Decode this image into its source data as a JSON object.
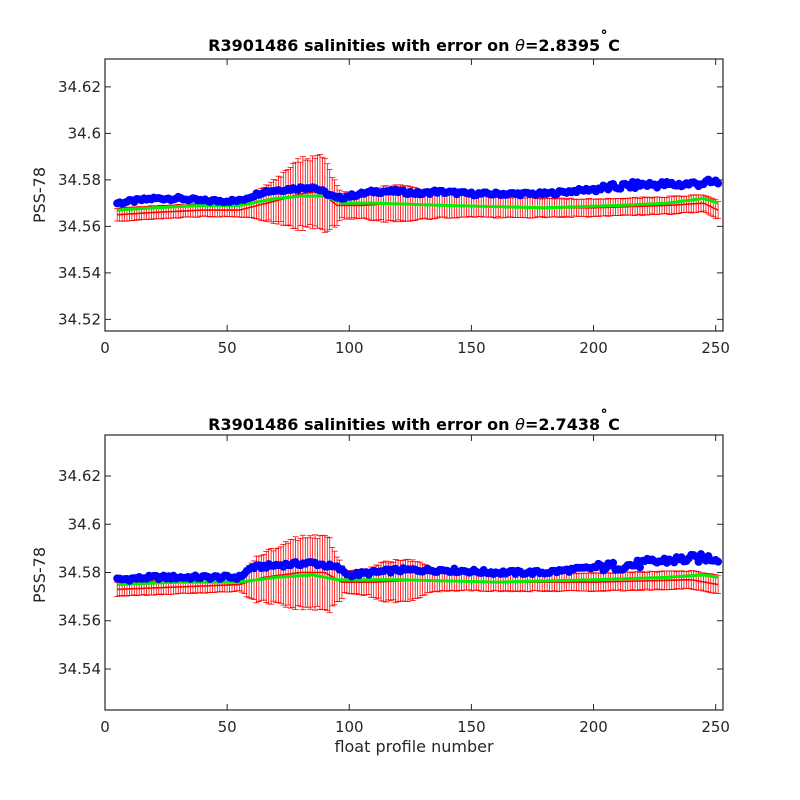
{
  "colors": {
    "float_points": "#0000ff",
    "mapped_salinity": "#ff0000",
    "calibrated_salinity": "#00ee00",
    "axes": "#262626"
  },
  "chart_data": [
    {
      "type": "scatter",
      "title": "R3901486 salinities with error on θ=2.8395˚C",
      "title_prefix": "R3901486 salinities with error on ",
      "title_theta": "θ",
      "title_value": "=2.8395",
      "title_degree": "˚",
      "title_unit": "C",
      "xlabel": "",
      "ylabel": "PSS-78",
      "xlim": [
        0,
        253
      ],
      "ylim": [
        34.515,
        34.632
      ],
      "xticks": [
        0,
        50,
        100,
        150,
        200,
        250
      ],
      "xtick_labels": [
        "0",
        "50",
        "100",
        "150",
        "200",
        "250"
      ],
      "yticks": [
        34.52,
        34.54,
        34.56,
        34.58,
        34.6,
        34.62
      ],
      "ytick_labels": [
        "34.52",
        "34.54",
        "34.56",
        "34.58",
        "34.6",
        "34.62"
      ],
      "grid": false,
      "series": [
        {
          "role": "float",
          "x_range": [
            5,
            251
          ],
          "control_points": [
            [
              5,
              34.57
            ],
            [
              20,
              34.572
            ],
            [
              30,
              34.572
            ],
            [
              40,
              34.571
            ],
            [
              55,
              34.571
            ],
            [
              65,
              34.575
            ],
            [
              75,
              34.576
            ],
            [
              85,
              34.577
            ],
            [
              95,
              34.572
            ],
            [
              110,
              34.575
            ],
            [
              120,
              34.575
            ],
            [
              130,
              34.574
            ],
            [
              135,
              34.575
            ],
            [
              150,
              34.574
            ],
            [
              180,
              34.574
            ],
            [
              200,
              34.576
            ],
            [
              220,
              34.578
            ],
            [
              235,
              34.578
            ],
            [
              251,
              34.579
            ]
          ],
          "jitter": 0.0007
        },
        {
          "role": "mapped",
          "x_range": [
            5,
            251
          ],
          "control_points": [
            [
              5,
              34.565
            ],
            [
              20,
              34.566
            ],
            [
              40,
              34.567
            ],
            [
              55,
              34.567
            ],
            [
              70,
              34.571
            ],
            [
              80,
              34.574
            ],
            [
              88,
              34.575
            ],
            [
              95,
              34.569
            ],
            [
              105,
              34.569
            ],
            [
              120,
              34.57
            ],
            [
              140,
              34.569
            ],
            [
              170,
              34.568
            ],
            [
              200,
              34.568
            ],
            [
              230,
              34.569
            ],
            [
              245,
              34.57
            ],
            [
              251,
              34.567
            ]
          ],
          "error_control_points": [
            [
              5,
              0.003
            ],
            [
              55,
              0.003
            ],
            [
              62,
              0.006
            ],
            [
              70,
              0.01
            ],
            [
              80,
              0.016
            ],
            [
              90,
              0.016
            ],
            [
              97,
              0.006
            ],
            [
              105,
              0.006
            ],
            [
              115,
              0.008
            ],
            [
              125,
              0.008
            ],
            [
              135,
              0.006
            ],
            [
              150,
              0.005
            ],
            [
              200,
              0.004
            ],
            [
              251,
              0.004
            ]
          ]
        },
        {
          "role": "calibrated",
          "x_range": [
            5,
            251
          ],
          "control_points": [
            [
              5,
              34.567
            ],
            [
              20,
              34.568
            ],
            [
              40,
              34.569
            ],
            [
              55,
              34.569
            ],
            [
              70,
              34.572
            ],
            [
              80,
              34.573
            ],
            [
              90,
              34.573
            ],
            [
              97,
              34.57
            ],
            [
              110,
              34.57
            ],
            [
              140,
              34.569
            ],
            [
              180,
              34.568
            ],
            [
              210,
              34.569
            ],
            [
              230,
              34.57
            ],
            [
              245,
              34.572
            ],
            [
              251,
              34.57
            ]
          ]
        }
      ]
    },
    {
      "type": "scatter",
      "title": "R3901486 salinities with error on θ=2.7438˚C",
      "title_prefix": "R3901486 salinities with error on ",
      "title_theta": "θ",
      "title_value": "=2.7438",
      "title_degree": "˚",
      "title_unit": "C",
      "xlabel": "float profile number",
      "ylabel": "PSS-78",
      "xlim": [
        0,
        253
      ],
      "ylim": [
        34.523,
        34.637
      ],
      "xticks": [
        0,
        50,
        100,
        150,
        200,
        250
      ],
      "xtick_labels": [
        "0",
        "50",
        "100",
        "150",
        "200",
        "250"
      ],
      "yticks": [
        34.54,
        34.56,
        34.58,
        34.6,
        34.62
      ],
      "ytick_labels": [
        "34.54",
        "34.56",
        "34.58",
        "34.6",
        "34.62"
      ],
      "grid": false,
      "series": [
        {
          "role": "float",
          "x_range": [
            5,
            251
          ],
          "control_points": [
            [
              5,
              34.577
            ],
            [
              20,
              34.578
            ],
            [
              40,
              34.578
            ],
            [
              55,
              34.578
            ],
            [
              60,
              34.582
            ],
            [
              70,
              34.583
            ],
            [
              85,
              34.584
            ],
            [
              95,
              34.582
            ],
            [
              100,
              34.579
            ],
            [
              120,
              34.581
            ],
            [
              140,
              34.581
            ],
            [
              160,
              34.58
            ],
            [
              180,
              34.58
            ],
            [
              200,
              34.582
            ],
            [
              215,
              34.583
            ],
            [
              230,
              34.585
            ],
            [
              245,
              34.586
            ],
            [
              251,
              34.586
            ]
          ],
          "jitter": 0.0008
        },
        {
          "role": "mapped",
          "x_range": [
            5,
            251
          ],
          "control_points": [
            [
              5,
              34.573
            ],
            [
              30,
              34.574
            ],
            [
              55,
              34.575
            ],
            [
              65,
              34.578
            ],
            [
              80,
              34.58
            ],
            [
              90,
              34.58
            ],
            [
              97,
              34.576
            ],
            [
              110,
              34.576
            ],
            [
              130,
              34.577
            ],
            [
              160,
              34.576
            ],
            [
              200,
              34.576
            ],
            [
              240,
              34.577
            ],
            [
              251,
              34.575
            ]
          ],
          "error_control_points": [
            [
              5,
              0.003
            ],
            [
              55,
              0.003
            ],
            [
              62,
              0.01
            ],
            [
              72,
              0.013
            ],
            [
              80,
              0.016
            ],
            [
              92,
              0.016
            ],
            [
              98,
              0.005
            ],
            [
              108,
              0.006
            ],
            [
              115,
              0.009
            ],
            [
              125,
              0.009
            ],
            [
              135,
              0.005
            ],
            [
              150,
              0.004
            ],
            [
              200,
              0.004
            ],
            [
              251,
              0.004
            ]
          ]
        },
        {
          "role": "calibrated",
          "x_range": [
            5,
            251
          ],
          "control_points": [
            [
              5,
              34.575
            ],
            [
              30,
              34.576
            ],
            [
              55,
              34.576
            ],
            [
              70,
              34.578
            ],
            [
              85,
              34.579
            ],
            [
              95,
              34.577
            ],
            [
              120,
              34.577
            ],
            [
              160,
              34.576
            ],
            [
              200,
              34.577
            ],
            [
              230,
              34.578
            ],
            [
              245,
              34.579
            ],
            [
              251,
              34.578
            ]
          ]
        }
      ]
    }
  ]
}
